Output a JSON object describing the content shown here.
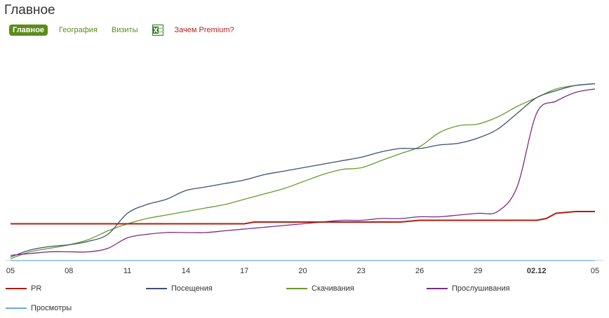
{
  "page": {
    "title": "Главное"
  },
  "tabs": [
    {
      "label": "Главное",
      "active": true
    },
    {
      "label": "География",
      "active": false
    },
    {
      "label": "Визиты",
      "active": false
    }
  ],
  "export_icon": "excel-icon",
  "premium_link": "Зачем Premium?",
  "colors": {
    "tab_green": "#5b8c1a",
    "premium_red": "#b22222"
  },
  "chart_data": {
    "type": "line",
    "xlabel": "",
    "ylabel": "",
    "x_ticks": [
      "05",
      "08",
      "11",
      "14",
      "17",
      "20",
      "23",
      "26",
      "29",
      "02.12",
      "05"
    ],
    "x_tick_index": [
      0,
      3,
      6,
      9,
      12,
      15,
      18,
      21,
      24,
      27,
      30
    ],
    "bold_ticks": [
      "02.12"
    ],
    "ylim": [
      0,
      100
    ],
    "grid": false,
    "legend_position": "bottom",
    "series": [
      {
        "name": "PR",
        "color": "#b01c0e",
        "points": [
          [
            0,
            21
          ],
          [
            12,
            21
          ],
          [
            12.5,
            22
          ],
          [
            20,
            22
          ],
          [
            21,
            23
          ],
          [
            27,
            23
          ],
          [
            27.5,
            24
          ],
          [
            28,
            27
          ],
          [
            29,
            28
          ],
          [
            30,
            28
          ]
        ]
      },
      {
        "name": "Посещения",
        "color": "#3c5072",
        "points": [
          [
            0,
            2
          ],
          [
            1,
            6
          ],
          [
            2,
            8
          ],
          [
            3,
            9
          ],
          [
            4,
            11
          ],
          [
            5,
            15
          ],
          [
            6,
            27
          ],
          [
            7,
            32
          ],
          [
            8,
            35
          ],
          [
            9,
            40
          ],
          [
            10,
            42
          ],
          [
            11,
            44
          ],
          [
            12,
            46
          ],
          [
            13,
            49
          ],
          [
            14,
            51
          ],
          [
            15,
            53
          ],
          [
            16,
            55
          ],
          [
            17,
            57
          ],
          [
            18,
            59
          ],
          [
            19,
            62
          ],
          [
            20,
            64
          ],
          [
            21,
            64
          ],
          [
            22,
            66
          ],
          [
            23,
            67
          ],
          [
            24,
            70
          ],
          [
            25,
            75
          ],
          [
            26,
            84
          ],
          [
            27,
            93
          ],
          [
            28,
            97
          ],
          [
            29,
            100
          ],
          [
            30,
            101
          ]
        ]
      },
      {
        "name": "Скачивания",
        "color": "#6b9a2b",
        "points": [
          [
            0,
            1
          ],
          [
            1,
            5
          ],
          [
            2,
            7
          ],
          [
            3,
            9
          ],
          [
            4,
            12
          ],
          [
            5,
            17
          ],
          [
            6,
            21
          ],
          [
            7,
            24
          ],
          [
            8,
            26
          ],
          [
            9,
            28
          ],
          [
            10,
            30
          ],
          [
            11,
            32
          ],
          [
            12,
            35
          ],
          [
            13,
            38
          ],
          [
            14,
            41
          ],
          [
            15,
            45
          ],
          [
            16,
            49
          ],
          [
            17,
            52
          ],
          [
            18,
            53
          ],
          [
            19,
            57
          ],
          [
            20,
            61
          ],
          [
            21,
            65
          ],
          [
            22,
            73
          ],
          [
            23,
            77
          ],
          [
            24,
            78
          ],
          [
            25,
            82
          ],
          [
            26,
            88
          ],
          [
            27,
            93
          ],
          [
            28,
            98
          ],
          [
            29,
            100
          ],
          [
            30,
            101
          ]
        ]
      },
      {
        "name": "Прослушивания",
        "color": "#7b2a85",
        "points": [
          [
            0,
            3
          ],
          [
            1,
            4
          ],
          [
            2,
            5
          ],
          [
            3,
            5
          ],
          [
            4,
            5
          ],
          [
            5,
            7
          ],
          [
            6,
            13
          ],
          [
            7,
            15
          ],
          [
            8,
            16
          ],
          [
            9,
            16
          ],
          [
            10,
            16
          ],
          [
            11,
            17
          ],
          [
            12,
            18
          ],
          [
            13,
            19
          ],
          [
            14,
            20
          ],
          [
            15,
            21
          ],
          [
            16,
            22
          ],
          [
            17,
            23
          ],
          [
            18,
            23
          ],
          [
            19,
            24
          ],
          [
            20,
            24
          ],
          [
            21,
            25
          ],
          [
            22,
            25
          ],
          [
            23,
            26
          ],
          [
            24,
            27
          ],
          [
            25,
            28
          ],
          [
            26,
            42
          ],
          [
            27,
            84
          ],
          [
            28,
            91
          ],
          [
            29,
            96
          ],
          [
            30,
            98
          ]
        ]
      },
      {
        "name": "Просмотры",
        "color": "#6aaad8",
        "points": [
          [
            0,
            0
          ],
          [
            30,
            0
          ]
        ]
      }
    ]
  }
}
